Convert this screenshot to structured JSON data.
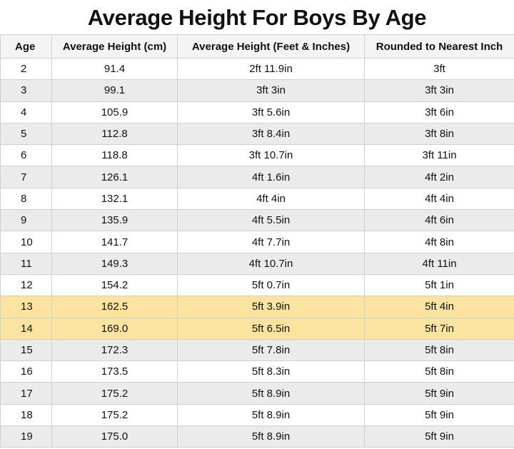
{
  "header": {
    "title": "Average Height For Boys By Age"
  },
  "table": {
    "columns": [
      "Age",
      "Average Height (cm)",
      "Average Height (Feet & Inches)",
      "Rounded to Nearest Inch"
    ],
    "rows": [
      [
        "2",
        "91.4",
        "2ft 11.9in",
        "3ft"
      ],
      [
        "3",
        "99.1",
        "3ft 3in",
        "3ft 3in"
      ],
      [
        "4",
        "105.9",
        "3ft 5.6in",
        "3ft 6in"
      ],
      [
        "5",
        "112.8",
        "3ft 8.4in",
        "3ft 8in"
      ],
      [
        "6",
        "118.8",
        "3ft 10.7in",
        "3ft 11in"
      ],
      [
        "7",
        "126.1",
        "4ft 1.6in",
        "4ft 2in"
      ],
      [
        "8",
        "132.1",
        "4ft 4in",
        "4ft 4in"
      ],
      [
        "9",
        "135.9",
        "4ft 5.5in",
        "4ft 6in"
      ],
      [
        "10",
        "141.7",
        "4ft 7.7in",
        "4ft 8in"
      ],
      [
        "11",
        "149.3",
        "4ft 10.7in",
        "4ft 11in"
      ],
      [
        "12",
        "154.2",
        "5ft 0.7in",
        "5ft 1in"
      ],
      [
        "13",
        "162.5",
        "5ft 3.9in",
        "5ft 4in"
      ],
      [
        "14",
        "169.0",
        "5ft 6.5in",
        "5ft 7in"
      ],
      [
        "15",
        "172.3",
        "5ft 7.8in",
        "5ft 8in"
      ],
      [
        "16",
        "173.5",
        "5ft 8.3in",
        "5ft 8in"
      ],
      [
        "17",
        "175.2",
        "5ft 8.9in",
        "5ft 9in"
      ],
      [
        "18",
        "175.2",
        "5ft 8.9in",
        "5ft 9in"
      ],
      [
        "19",
        "175.0",
        "5ft 8.9in",
        "5ft 9in"
      ]
    ]
  }
}
